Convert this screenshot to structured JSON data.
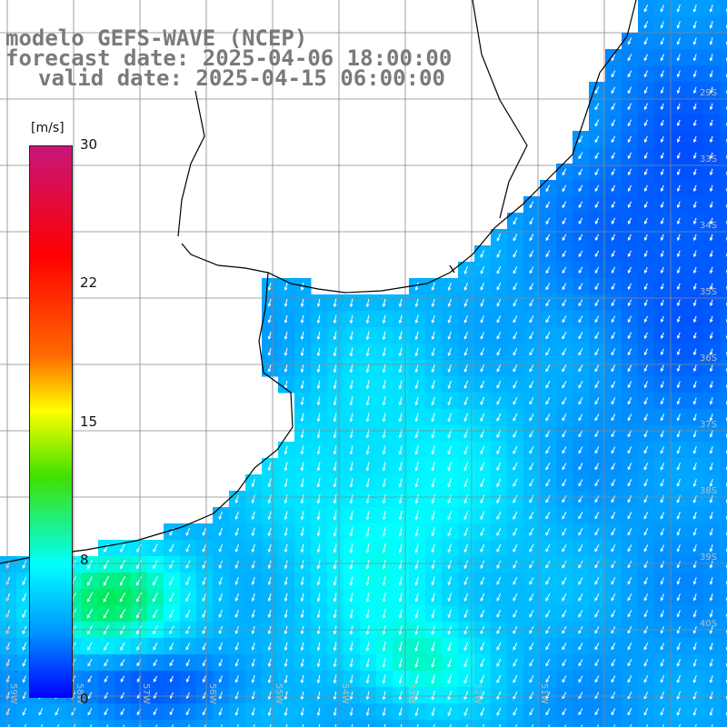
{
  "title": {
    "line1": "modelo GEFS-WAVE (NCEP)",
    "line2": "forecast date: 2025-04-06 18:00:00",
    "line3": "valid date: 2025-04-15 06:00:00"
  },
  "colorbar": {
    "unit": "[m/s]",
    "ticks": [
      "30",
      "22",
      "15",
      "8",
      "0"
    ]
  },
  "map_labels": {
    "lat": [
      "29S",
      "33S",
      "34S",
      "35S",
      "36S",
      "37S",
      "38S",
      "39S",
      "40S"
    ],
    "lon": [
      "59W",
      "58W",
      "57W",
      "56W",
      "55W",
      "54W",
      "53W",
      "52W",
      "51W"
    ]
  },
  "palette": {
    "land": "#ffffff",
    "coast": "#000000",
    "grid": "#888888",
    "arrow": "#ffffff",
    "title": "#7a7a7a"
  }
}
